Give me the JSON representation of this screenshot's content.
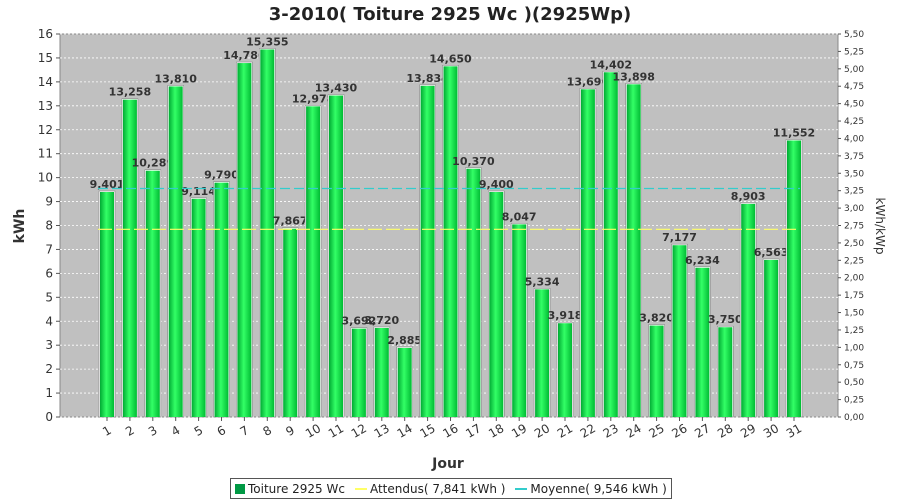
{
  "chart_data": {
    "type": "bar",
    "title": "3-2010( Toiture 2925 Wc )(2925Wp)",
    "xlabel": "Jour",
    "ylabel": "kWh",
    "y2label": "kWh/kWp",
    "ylim": [
      0,
      16
    ],
    "y2lim": [
      0,
      5.5
    ],
    "categories": [
      "1",
      "2",
      "3",
      "4",
      "5",
      "6",
      "7",
      "8",
      "9",
      "10",
      "11",
      "12",
      "13",
      "14",
      "15",
      "16",
      "17",
      "18",
      "19",
      "20",
      "21",
      "22",
      "23",
      "24",
      "25",
      "26",
      "27",
      "28",
      "29",
      "30",
      "31"
    ],
    "series": [
      {
        "name": "Toiture 2925 Wc",
        "values": [
          9.401,
          13.258,
          10.289,
          13.81,
          9.114,
          9.79,
          14.786,
          15.355,
          7.867,
          12.978,
          13.43,
          3.692,
          3.72,
          2.885,
          13.834,
          14.65,
          10.37,
          9.4,
          8.047,
          5.334,
          3.918,
          13.69,
          14.402,
          13.898,
          3.82,
          7.177,
          6.234,
          3.75,
          8.903,
          6.563,
          11.552
        ]
      }
    ],
    "data_labels": [
      "9,401",
      "13,258",
      "10,289",
      "13,810",
      "9,114",
      "9,790",
      "14,786",
      "15,355",
      "7,867",
      "12,978",
      "13,430",
      "3,692",
      "3,720",
      "2,885",
      "13,834",
      "14,650",
      "10,370",
      "9,400",
      "8,047",
      "5,334",
      "3,918",
      "13,690",
      "14,402",
      "13,898",
      "3,820",
      "7,177",
      "6,234",
      "3,750",
      "8,903",
      "6,563",
      "11,552"
    ],
    "reference_lines": [
      {
        "name": "Attendus( 7,841 kWh )",
        "value": 7.841,
        "color": "#ffff66"
      },
      {
        "name": "Moyenne( 9,546 kWh )",
        "value": 9.546,
        "color": "#33cccc"
      }
    ],
    "y_ticks": [
      "0",
      "1",
      "2",
      "3",
      "4",
      "5",
      "6",
      "7",
      "8",
      "9",
      "10",
      "11",
      "12",
      "13",
      "14",
      "15",
      "16"
    ],
    "y2_ticks": [
      "0,00",
      "0,25",
      "0,50",
      "0,75",
      "1,00",
      "1,25",
      "1,50",
      "1,75",
      "2,00",
      "2,25",
      "2,50",
      "2,75",
      "3,00",
      "3,25",
      "3,50",
      "3,75",
      "4,00",
      "4,25",
      "4,50",
      "4,75",
      "5,00",
      "5,25",
      "5,50"
    ],
    "grid": true,
    "legend_position": "bottom",
    "colors": {
      "bar": "#00ee44",
      "bar_dark": "#009933",
      "plot_bg": "#c0c0c0"
    }
  },
  "legend": {
    "bar_label": "Toiture 2925 Wc",
    "expected_label": "Attendus( 7,841 kWh )",
    "average_label": "Moyenne( 9,546 kWh )"
  }
}
